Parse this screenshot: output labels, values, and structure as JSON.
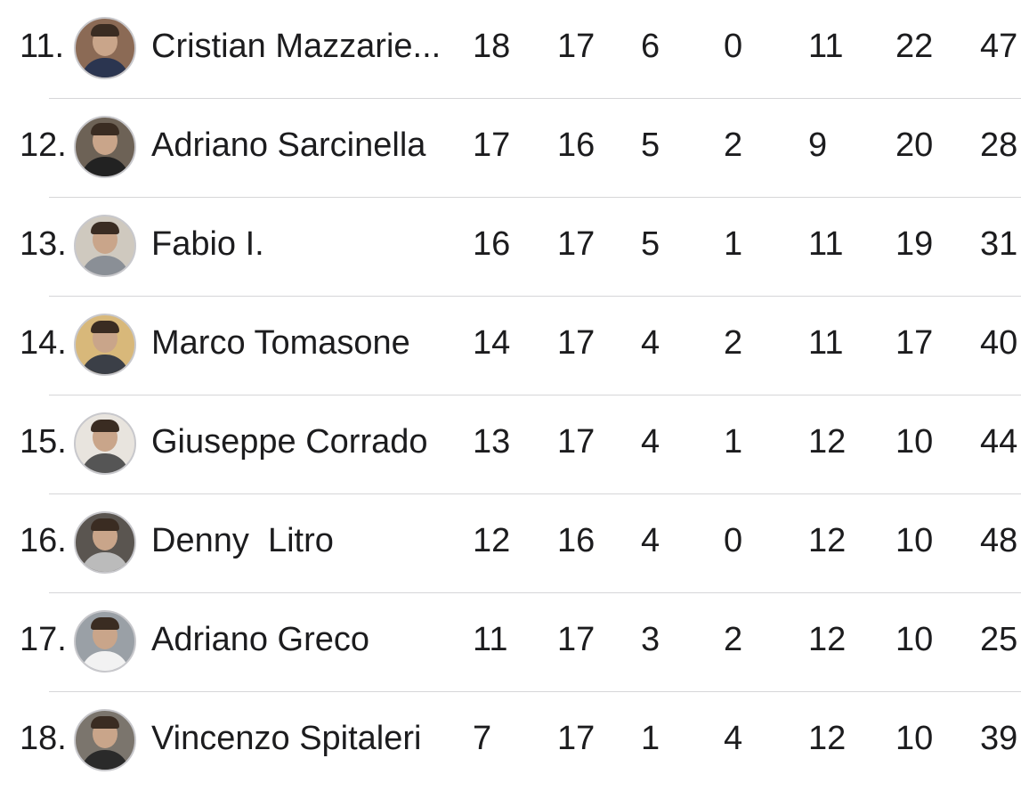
{
  "rows": [
    {
      "rank": "11.",
      "name": "Cristian Mazzarie...",
      "values": [
        "18",
        "17",
        "6",
        "0",
        "11",
        "22",
        "47"
      ],
      "avatar_bg": "#8b6a55",
      "shirt": "#2b3550"
    },
    {
      "rank": "12.",
      "name": "Adriano Sarcinella",
      "values": [
        "17",
        "16",
        "5",
        "2",
        "9",
        "20",
        "28"
      ],
      "avatar_bg": "#6d6256",
      "shirt": "#222"
    },
    {
      "rank": "13.",
      "name": "Fabio I.",
      "values": [
        "16",
        "17",
        "5",
        "1",
        "11",
        "19",
        "31"
      ],
      "avatar_bg": "#cfc9bf",
      "shirt": "#8a8f96"
    },
    {
      "rank": "14.",
      "name": "Marco Tomasone",
      "values": [
        "14",
        "17",
        "4",
        "2",
        "11",
        "17",
        "40"
      ],
      "avatar_bg": "#d8b87a",
      "shirt": "#3b3f47"
    },
    {
      "rank": "15.",
      "name": "Giuseppe Corrado",
      "values": [
        "13",
        "17",
        "4",
        "1",
        "12",
        "10",
        "44"
      ],
      "avatar_bg": "#e8e4de",
      "shirt": "#555"
    },
    {
      "rank": "16.",
      "name": "Denny  Litro",
      "values": [
        "12",
        "16",
        "4",
        "0",
        "12",
        "10",
        "48"
      ],
      "avatar_bg": "#5a5550",
      "shirt": "#bbb"
    },
    {
      "rank": "17.",
      "name": "Adriano Greco",
      "values": [
        "11",
        "17",
        "3",
        "2",
        "12",
        "10",
        "25"
      ],
      "avatar_bg": "#9aa0a6",
      "shirt": "#f2f2f2"
    },
    {
      "rank": "18.",
      "name": "Vincenzo Spitaleri",
      "values": [
        "7",
        "17",
        "1",
        "4",
        "12",
        "10",
        "39"
      ],
      "avatar_bg": "#7b756d",
      "shirt": "#2a2a2a"
    }
  ]
}
